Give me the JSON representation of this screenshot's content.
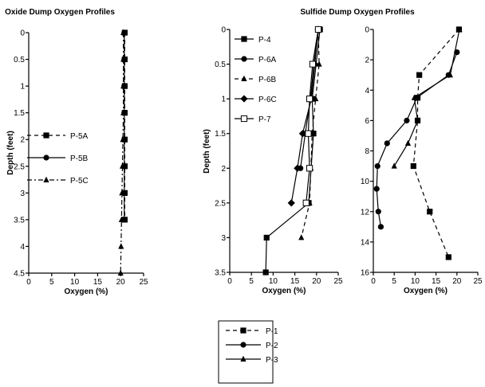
{
  "titles": {
    "oxide": "Oxide Dump Oxygen Profiles",
    "sulfide": "Sulfide Dump Oxygen Profiles"
  },
  "chart_data": [
    {
      "type": "line",
      "id": "oxide",
      "xlabel": "Oxygen (%)",
      "ylabel": "Depth (feet)",
      "xlim": [
        0,
        25
      ],
      "ylim": [
        4.5,
        0
      ],
      "xticks": [
        "0",
        "5",
        "10",
        "15",
        "20",
        "25"
      ],
      "yticks": [
        "0",
        "0.5",
        "1",
        "1.5",
        "2",
        "2.5",
        "3",
        "3.5",
        "4",
        "4.5"
      ],
      "legend_position": "center-left",
      "series": [
        {
          "name": "P-5A",
          "marker": "square",
          "dash": "dashed",
          "points": [
            [
              20.9,
              0
            ],
            [
              20.9,
              0.5
            ],
            [
              20.9,
              1
            ],
            [
              20.9,
              1.5
            ],
            [
              20.9,
              2
            ],
            [
              20.9,
              2.5
            ],
            [
              20.9,
              3
            ],
            [
              20.9,
              3.5
            ]
          ]
        },
        {
          "name": "P-5B",
          "marker": "circle",
          "dash": "solid",
          "points": [
            [
              20.8,
              0
            ],
            [
              20.8,
              0.5
            ],
            [
              20.8,
              1
            ],
            [
              20.8,
              1.5
            ],
            [
              20.8,
              2
            ],
            [
              20.8,
              2.5
            ],
            [
              20.8,
              3
            ],
            [
              20.8,
              3.5
            ]
          ]
        },
        {
          "name": "P-5C",
          "marker": "triangle",
          "dash": "dashdot",
          "points": [
            [
              20.6,
              0
            ],
            [
              20.6,
              0.5
            ],
            [
              20.6,
              1
            ],
            [
              20.6,
              1.5
            ],
            [
              20.5,
              2
            ],
            [
              20.4,
              2.5
            ],
            [
              20.3,
              3
            ],
            [
              20.2,
              3.5
            ],
            [
              20.1,
              4
            ],
            [
              20,
              4.5
            ]
          ]
        }
      ]
    },
    {
      "type": "line",
      "id": "sulfide-a",
      "xlabel": "Oxygen (%)",
      "ylabel": "Depth (feet)",
      "xlim": [
        0,
        25
      ],
      "ylim": [
        3.5,
        0
      ],
      "xticks": [
        "0",
        "5",
        "10",
        "15",
        "20",
        "25"
      ],
      "yticks": [
        "0",
        "0.5",
        "1",
        "1.5",
        "2",
        "2.5",
        "3",
        "3.5"
      ],
      "legend_position": "top-left",
      "series": [
        {
          "name": "P-4",
          "marker": "square",
          "dash": "solid",
          "points": [
            [
              20.8,
              0
            ],
            [
              19,
              1
            ],
            [
              19.3,
              1.5
            ],
            [
              18.2,
              2.5
            ],
            [
              8.5,
              3
            ],
            [
              8.3,
              3.5
            ]
          ]
        },
        {
          "name": "P-6A",
          "marker": "circle",
          "dash": "solid",
          "points": [
            [
              20.5,
              0
            ],
            [
              19.4,
              0.5
            ],
            [
              18.6,
              1
            ],
            [
              17.4,
              1.5
            ],
            [
              16.3,
              2
            ]
          ]
        },
        {
          "name": "P-6B",
          "marker": "triangle",
          "dash": "dashed",
          "points": [
            [
              20.4,
              0
            ],
            [
              20.6,
              0.5
            ],
            [
              19.8,
              1
            ],
            [
              19,
              1.5
            ],
            [
              18.7,
              2
            ],
            [
              18.4,
              2.5
            ],
            [
              16.5,
              3
            ]
          ]
        },
        {
          "name": "P-6C",
          "marker": "diamond",
          "dash": "solid",
          "points": [
            [
              20.4,
              0
            ],
            [
              19.6,
              0.5
            ],
            [
              18.8,
              1
            ],
            [
              16.8,
              1.5
            ],
            [
              15.6,
              2
            ],
            [
              14.2,
              2.5
            ]
          ]
        },
        {
          "name": "P-7",
          "marker": "open-square",
          "dash": "solid",
          "points": [
            [
              20.4,
              0
            ],
            [
              19.1,
              0.5
            ],
            [
              18.4,
              1
            ],
            [
              18.1,
              1.5
            ],
            [
              18.4,
              2
            ],
            [
              17.6,
              2.5
            ]
          ]
        }
      ]
    },
    {
      "type": "line",
      "id": "sulfide-b",
      "xlabel": "Oxygen (%)",
      "ylabel": "",
      "xlim": [
        0,
        25
      ],
      "ylim": [
        16,
        0
      ],
      "xticks": [
        "0",
        "5",
        "10",
        "15",
        "20",
        "25"
      ],
      "yticks": [
        "0",
        "2",
        "4",
        "6",
        "8",
        "10",
        "12",
        "14",
        "16"
      ],
      "legend_position": "bottom (below charts)",
      "series": [
        {
          "name": "P-1",
          "marker": "square",
          "dash": "dashed",
          "points": [
            [
              20.5,
              0
            ],
            [
              11,
              3
            ],
            [
              10.6,
              4.5
            ],
            [
              10.6,
              6
            ],
            [
              9.6,
              9
            ],
            [
              13.5,
              12
            ],
            [
              18,
              15
            ]
          ]
        },
        {
          "name": "P-2",
          "marker": "circle",
          "dash": "solid",
          "points": [
            [
              20,
              1.5
            ],
            [
              18,
              3
            ],
            [
              10.4,
              4.5
            ],
            [
              8,
              6
            ],
            [
              3.3,
              7.5
            ],
            [
              1,
              9
            ],
            [
              0.8,
              10.5
            ],
            [
              1.2,
              12
            ],
            [
              1.8,
              13
            ]
          ]
        },
        {
          "name": "P-3",
          "marker": "triangle",
          "dash": "solid",
          "points": [
            [
              20.6,
              0
            ],
            [
              18.4,
              3
            ],
            [
              9.8,
              4.5
            ],
            [
              10.6,
              6
            ],
            [
              8.3,
              7.5
            ],
            [
              5,
              9
            ]
          ]
        }
      ]
    }
  ]
}
